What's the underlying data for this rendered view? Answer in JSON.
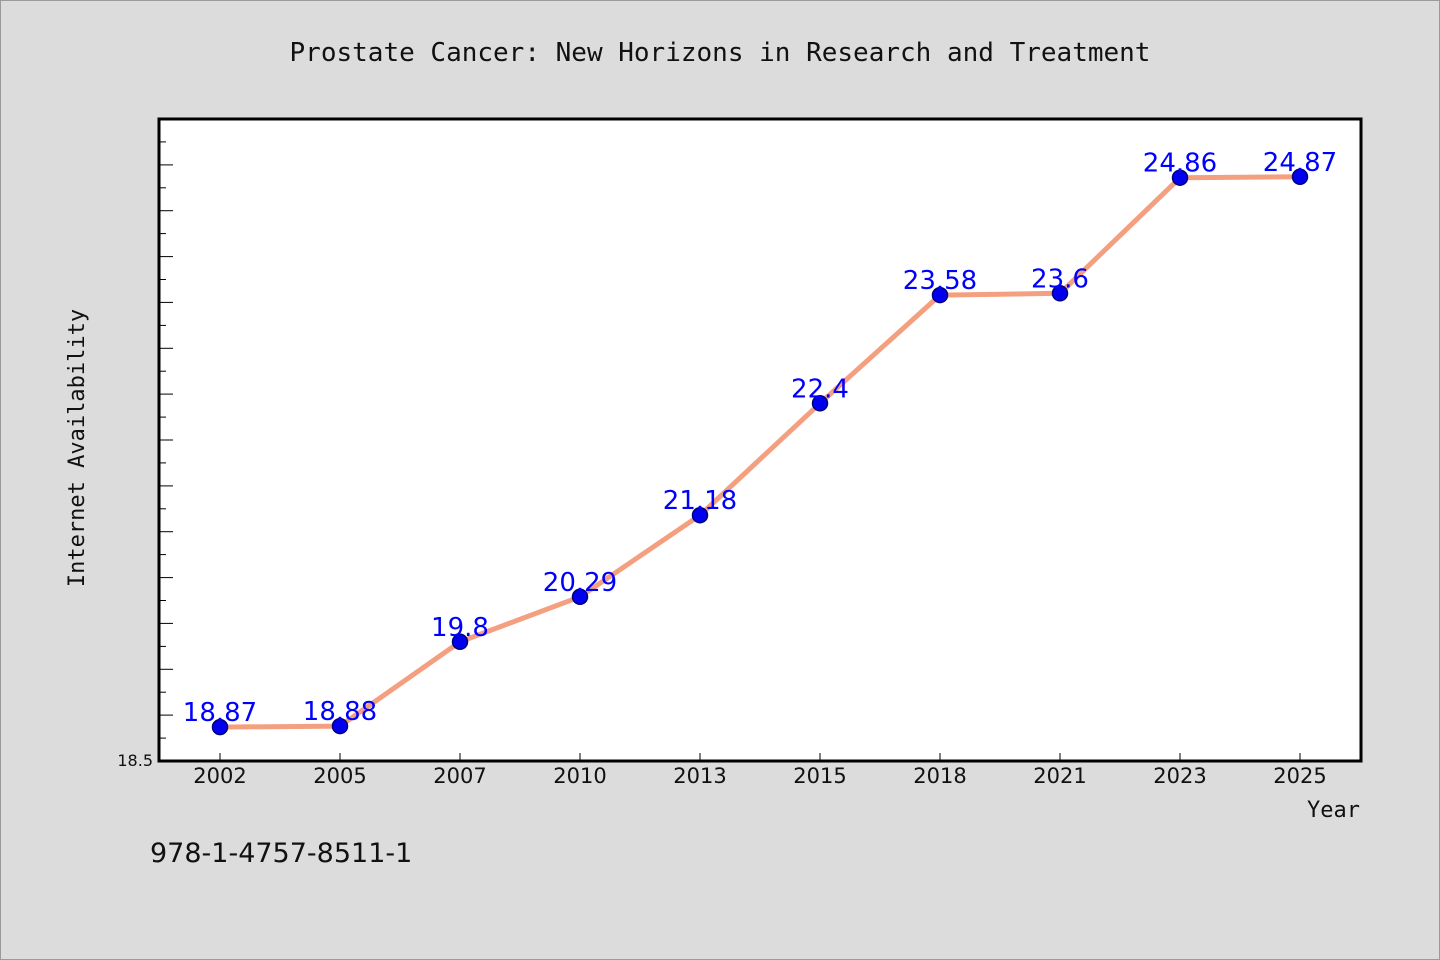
{
  "chart_data": {
    "type": "line",
    "title": "Prostate Cancer: New Horizons in Research and Treatment",
    "xlabel": "Year",
    "ylabel": "Internet Availability",
    "categories": [
      "2002",
      "2005",
      "2007",
      "2010",
      "2013",
      "2015",
      "2018",
      "2021",
      "2023",
      "2025"
    ],
    "series": [
      {
        "values": [
          18.87,
          18.88,
          19.8,
          20.29,
          21.18,
          22.4,
          23.58,
          23.6,
          24.86,
          24.87
        ],
        "labels": [
          "18.87",
          "18.88",
          "19.8",
          "20.29",
          "21.18",
          "22.4",
          "23.58",
          "23.6",
          "24.86",
          "24.87"
        ]
      }
    ],
    "ylim": [
      18.5,
      25.5
    ],
    "y_tick_labels": [
      "18.5"
    ],
    "grid": false,
    "legend": "none"
  },
  "footer": {
    "isbn": "978-1-4757-8511-1"
  },
  "colors": {
    "line": "#f4a080",
    "marker": "#0000ee",
    "marker_edge": "#00007a",
    "label": "#0000ff",
    "plot_bg": "#ffffff",
    "frame_bg": "#dcdcdc"
  }
}
